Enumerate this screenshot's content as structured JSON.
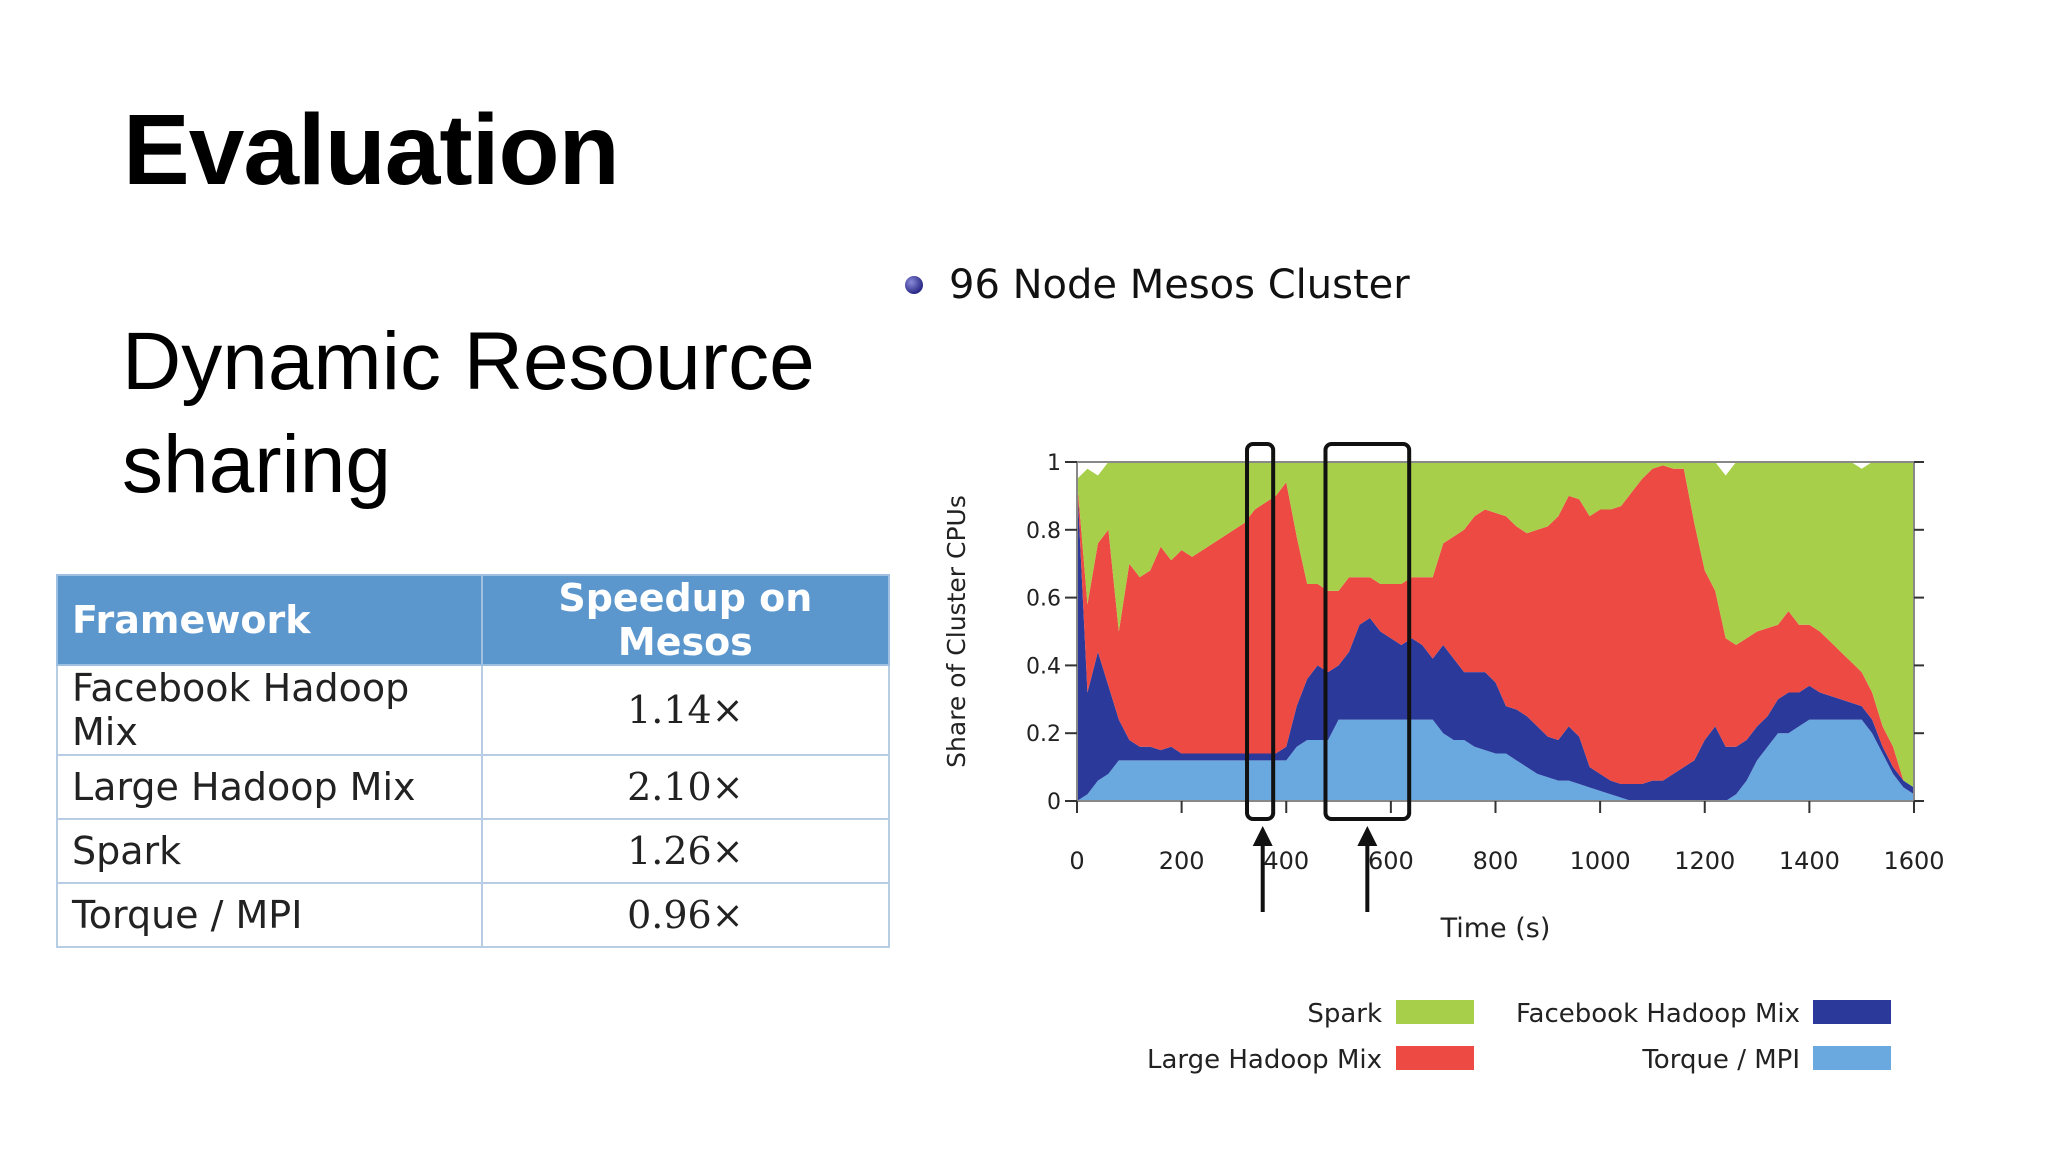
{
  "slide": {
    "title": "Evaluation",
    "subtitle": "Dynamic Resource sharing",
    "bullet": "96 Node Mesos Cluster"
  },
  "table": {
    "headers": [
      "Framework",
      "Speedup on Mesos"
    ],
    "rows": [
      [
        "Facebook Hadoop Mix",
        "1.14×"
      ],
      [
        "Large Hadoop Mix",
        "2.10×"
      ],
      [
        "Spark",
        "1.26×"
      ],
      [
        "Torque / MPI",
        "0.96×"
      ]
    ]
  },
  "colors": {
    "spark": "#a8cf4a",
    "large_hadoop": "#ec4a43",
    "facebook_hadoop": "#2b3a9a",
    "torque_mpi": "#6aa8e0",
    "table_header": "#5b96cd"
  },
  "chart_data": {
    "type": "area",
    "title": "",
    "xlabel": "Time (s)",
    "ylabel": "Share of Cluster CPUs",
    "xlim": [
      0,
      1600
    ],
    "ylim": [
      0,
      1
    ],
    "x_ticks": [
      "0",
      "200",
      "400",
      "600",
      "800",
      "1000",
      "1200",
      "1400",
      "1600"
    ],
    "y_ticks": [
      "0",
      "0.2",
      "0.4",
      "0.6",
      "0.8",
      "1"
    ],
    "stacking": "stacked, bottom to top: Torque / MPI, Facebook Hadoop Mix, Large Hadoop Mix, Spark",
    "x": [
      0,
      20,
      40,
      60,
      80,
      100,
      120,
      140,
      160,
      180,
      200,
      220,
      240,
      260,
      280,
      300,
      320,
      340,
      360,
      380,
      400,
      420,
      440,
      460,
      480,
      500,
      520,
      540,
      560,
      580,
      600,
      620,
      640,
      660,
      680,
      700,
      720,
      740,
      760,
      780,
      800,
      820,
      840,
      860,
      880,
      900,
      920,
      940,
      960,
      980,
      1000,
      1020,
      1040,
      1060,
      1080,
      1100,
      1120,
      1140,
      1160,
      1180,
      1200,
      1220,
      1240,
      1260,
      1280,
      1300,
      1320,
      1340,
      1360,
      1380,
      1400,
      1420,
      1440,
      1460,
      1480,
      1500,
      1520,
      1540,
      1560,
      1580,
      1600
    ],
    "series": [
      {
        "name": "Torque / MPI",
        "values": [
          0,
          0.02,
          0.06,
          0.08,
          0.12,
          0.12,
          0.12,
          0.12,
          0.12,
          0.12,
          0.12,
          0.12,
          0.12,
          0.12,
          0.12,
          0.12,
          0.12,
          0.12,
          0.12,
          0.12,
          0.12,
          0.16,
          0.18,
          0.18,
          0.18,
          0.24,
          0.24,
          0.24,
          0.24,
          0.24,
          0.24,
          0.24,
          0.24,
          0.24,
          0.24,
          0.2,
          0.18,
          0.18,
          0.16,
          0.15,
          0.14,
          0.14,
          0.12,
          0.1,
          0.08,
          0.07,
          0.06,
          0.06,
          0.05,
          0.04,
          0.03,
          0.02,
          0.01,
          0,
          0,
          0,
          0,
          0,
          0,
          0,
          0,
          0,
          0,
          0.02,
          0.06,
          0.12,
          0.16,
          0.2,
          0.2,
          0.22,
          0.24,
          0.24,
          0.24,
          0.24,
          0.24,
          0.24,
          0.2,
          0.14,
          0.08,
          0.04,
          0.02
        ]
      },
      {
        "name": "Facebook Hadoop Mix",
        "values": [
          0.95,
          0.3,
          0.38,
          0.26,
          0.12,
          0.06,
          0.04,
          0.04,
          0.03,
          0.04,
          0.02,
          0.02,
          0.02,
          0.02,
          0.02,
          0.02,
          0.02,
          0.02,
          0.02,
          0.02,
          0.04,
          0.12,
          0.18,
          0.22,
          0.2,
          0.16,
          0.2,
          0.28,
          0.3,
          0.26,
          0.24,
          0.22,
          0.24,
          0.22,
          0.18,
          0.26,
          0.24,
          0.2,
          0.22,
          0.23,
          0.21,
          0.14,
          0.15,
          0.15,
          0.14,
          0.12,
          0.12,
          0.16,
          0.14,
          0.06,
          0.05,
          0.04,
          0.04,
          0.05,
          0.05,
          0.06,
          0.06,
          0.08,
          0.1,
          0.12,
          0.18,
          0.22,
          0.16,
          0.14,
          0.12,
          0.1,
          0.09,
          0.1,
          0.12,
          0.1,
          0.1,
          0.08,
          0.07,
          0.06,
          0.05,
          0.04,
          0.04,
          0.02,
          0.02,
          0.02,
          0.02
        ]
      },
      {
        "name": "Large Hadoop Mix",
        "values": [
          0,
          0.26,
          0.32,
          0.46,
          0.26,
          0.52,
          0.5,
          0.52,
          0.6,
          0.55,
          0.6,
          0.58,
          0.6,
          0.62,
          0.64,
          0.66,
          0.68,
          0.72,
          0.74,
          0.76,
          0.78,
          0.5,
          0.28,
          0.24,
          0.24,
          0.22,
          0.22,
          0.14,
          0.12,
          0.14,
          0.16,
          0.18,
          0.18,
          0.2,
          0.24,
          0.3,
          0.36,
          0.42,
          0.46,
          0.48,
          0.5,
          0.56,
          0.54,
          0.54,
          0.58,
          0.62,
          0.66,
          0.68,
          0.7,
          0.74,
          0.78,
          0.8,
          0.82,
          0.86,
          0.9,
          0.92,
          0.93,
          0.9,
          0.88,
          0.7,
          0.5,
          0.4,
          0.32,
          0.3,
          0.3,
          0.28,
          0.26,
          0.22,
          0.24,
          0.2,
          0.18,
          0.18,
          0.16,
          0.14,
          0.12,
          0.1,
          0.08,
          0.06,
          0.06,
          0,
          0
        ]
      },
      {
        "name": "Spark",
        "values": [
          0,
          0.4,
          0.2,
          0.22,
          0.6,
          0.3,
          0.34,
          0.32,
          0.25,
          0.29,
          0.26,
          0.28,
          0.26,
          0.24,
          0.22,
          0.2,
          0.18,
          0.14,
          0.12,
          0.1,
          0.06,
          0.22,
          0.42,
          0.36,
          0.38,
          0.38,
          0.34,
          0.34,
          0.34,
          0.36,
          0.36,
          0.36,
          0.34,
          0.34,
          0.34,
          0.24,
          0.22,
          0.2,
          0.16,
          0.14,
          0.15,
          0.16,
          0.19,
          0.21,
          0.2,
          0.19,
          0.16,
          0.1,
          0.11,
          0.16,
          0.14,
          0.14,
          0.13,
          0.09,
          0.05,
          0.02,
          0.01,
          0.02,
          0.02,
          0.18,
          0.32,
          0.38,
          0.48,
          0.54,
          0.52,
          0.5,
          0.49,
          0.48,
          0.44,
          0.48,
          0.48,
          0.5,
          0.53,
          0.56,
          0.59,
          0.6,
          0.68,
          0.78,
          0.84,
          0.94,
          0.96
        ]
      }
    ],
    "legend": [
      {
        "name": "Spark",
        "color": "#a8cf4a"
      },
      {
        "name": "Facebook Hadoop Mix",
        "color": "#2b3a9a"
      },
      {
        "name": "Large Hadoop Mix",
        "color": "#ec4a43"
      },
      {
        "name": "Torque / MPI",
        "color": "#6aa8e0"
      }
    ],
    "legend_placement": "bottom",
    "annotations": [
      {
        "type": "box-with-arrow",
        "x_range": [
          325,
          375
        ],
        "arrow_at": 355
      },
      {
        "type": "box-with-arrow",
        "x_range": [
          475,
          635
        ],
        "arrow_at": 555
      }
    ],
    "grid": false
  }
}
